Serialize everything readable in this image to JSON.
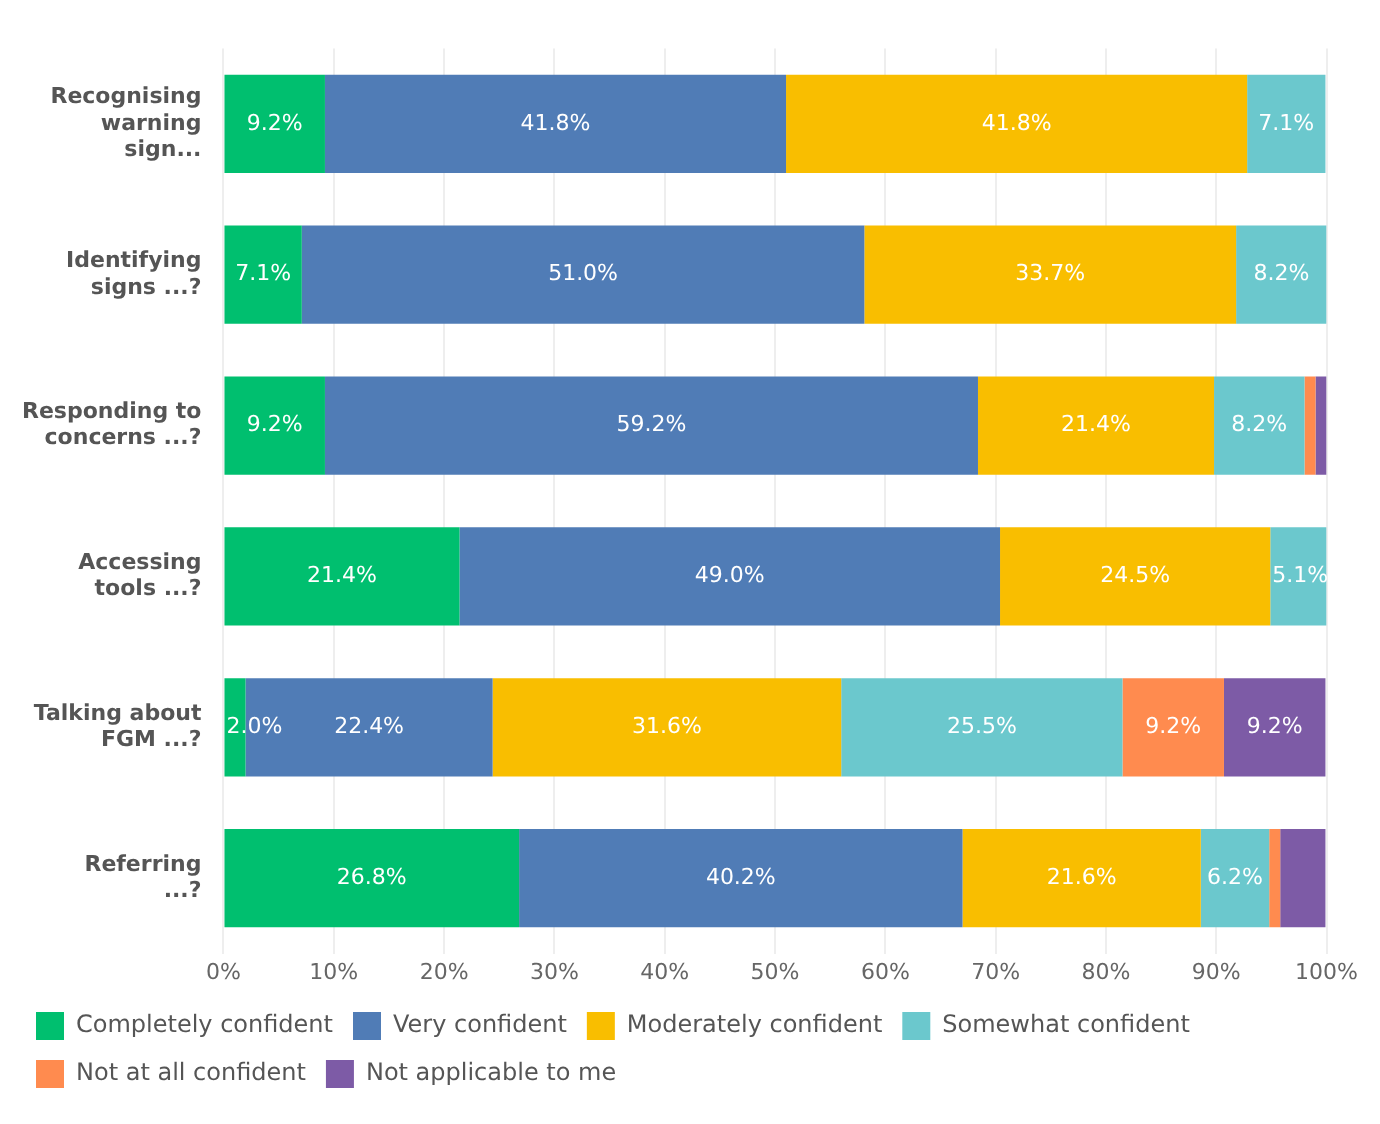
{
  "chart_data": {
    "type": "bar",
    "orientation": "horizontal",
    "stacked": true,
    "categories": [
      "Recognising warning sign...",
      "Identifying signs ...?",
      "Responding to concerns ...?",
      "Accessing tools ...?",
      "Talking about FGM ...?",
      "Referring ...?"
    ],
    "series": [
      {
        "name": "Completely confident",
        "color": "#00bf6f",
        "values": [
          9.2,
          7.1,
          9.2,
          21.4,
          2.0,
          26.8
        ],
        "value_labels": [
          "9.2%",
          "7.1%",
          "9.2%",
          "21.4%",
          "2.0%",
          "26.8%"
        ]
      },
      {
        "name": "Very confident",
        "color": "#507cb6",
        "values": [
          41.8,
          51.0,
          59.2,
          49.0,
          22.4,
          40.2
        ],
        "value_labels": [
          "41.8%",
          "51.0%",
          "59.2%",
          "49.0%",
          "22.4%",
          "40.2%"
        ]
      },
      {
        "name": "Moderately confident",
        "color": "#f9be00",
        "values": [
          41.8,
          33.7,
          21.4,
          24.5,
          31.6,
          21.6
        ],
        "value_labels": [
          "41.8%",
          "33.7%",
          "21.4%",
          "24.5%",
          "31.6%",
          "21.6%"
        ]
      },
      {
        "name": "Somewhat confident",
        "color": "#6bc8cd",
        "values": [
          7.1,
          8.2,
          8.2,
          5.1,
          25.5,
          6.2
        ],
        "value_labels": [
          "7.1%",
          "8.2%",
          "8.2%",
          "5.1%",
          "25.5%",
          "6.2%"
        ]
      },
      {
        "name": "Not at all confident",
        "color": "#ff8b4f",
        "values": [
          0,
          0,
          1.0,
          0,
          9.2,
          1.0
        ],
        "value_labels": [
          null,
          null,
          null,
          null,
          "9.2%",
          null
        ]
      },
      {
        "name": "Not applicable to me",
        "color": "#7d5ba6",
        "values": [
          0,
          0,
          1.0,
          0,
          9.2,
          4.1
        ],
        "value_labels": [
          null,
          null,
          null,
          null,
          "9.2%",
          null
        ]
      }
    ],
    "xlim": [
      0,
      100
    ],
    "xticks": [
      {
        "value": 0,
        "label": "0%"
      },
      {
        "value": 10,
        "label": "10%"
      },
      {
        "value": 20,
        "label": "20%"
      },
      {
        "value": 30,
        "label": "30%"
      },
      {
        "value": 40,
        "label": "40%"
      },
      {
        "value": 50,
        "label": "50%"
      },
      {
        "value": 60,
        "label": "60%"
      },
      {
        "value": 70,
        "label": "70%"
      },
      {
        "value": 80,
        "label": "80%"
      },
      {
        "value": 90,
        "label": "90%"
      },
      {
        "value": 100,
        "label": "100%"
      }
    ],
    "grid": "x",
    "legend": "bottom"
  }
}
